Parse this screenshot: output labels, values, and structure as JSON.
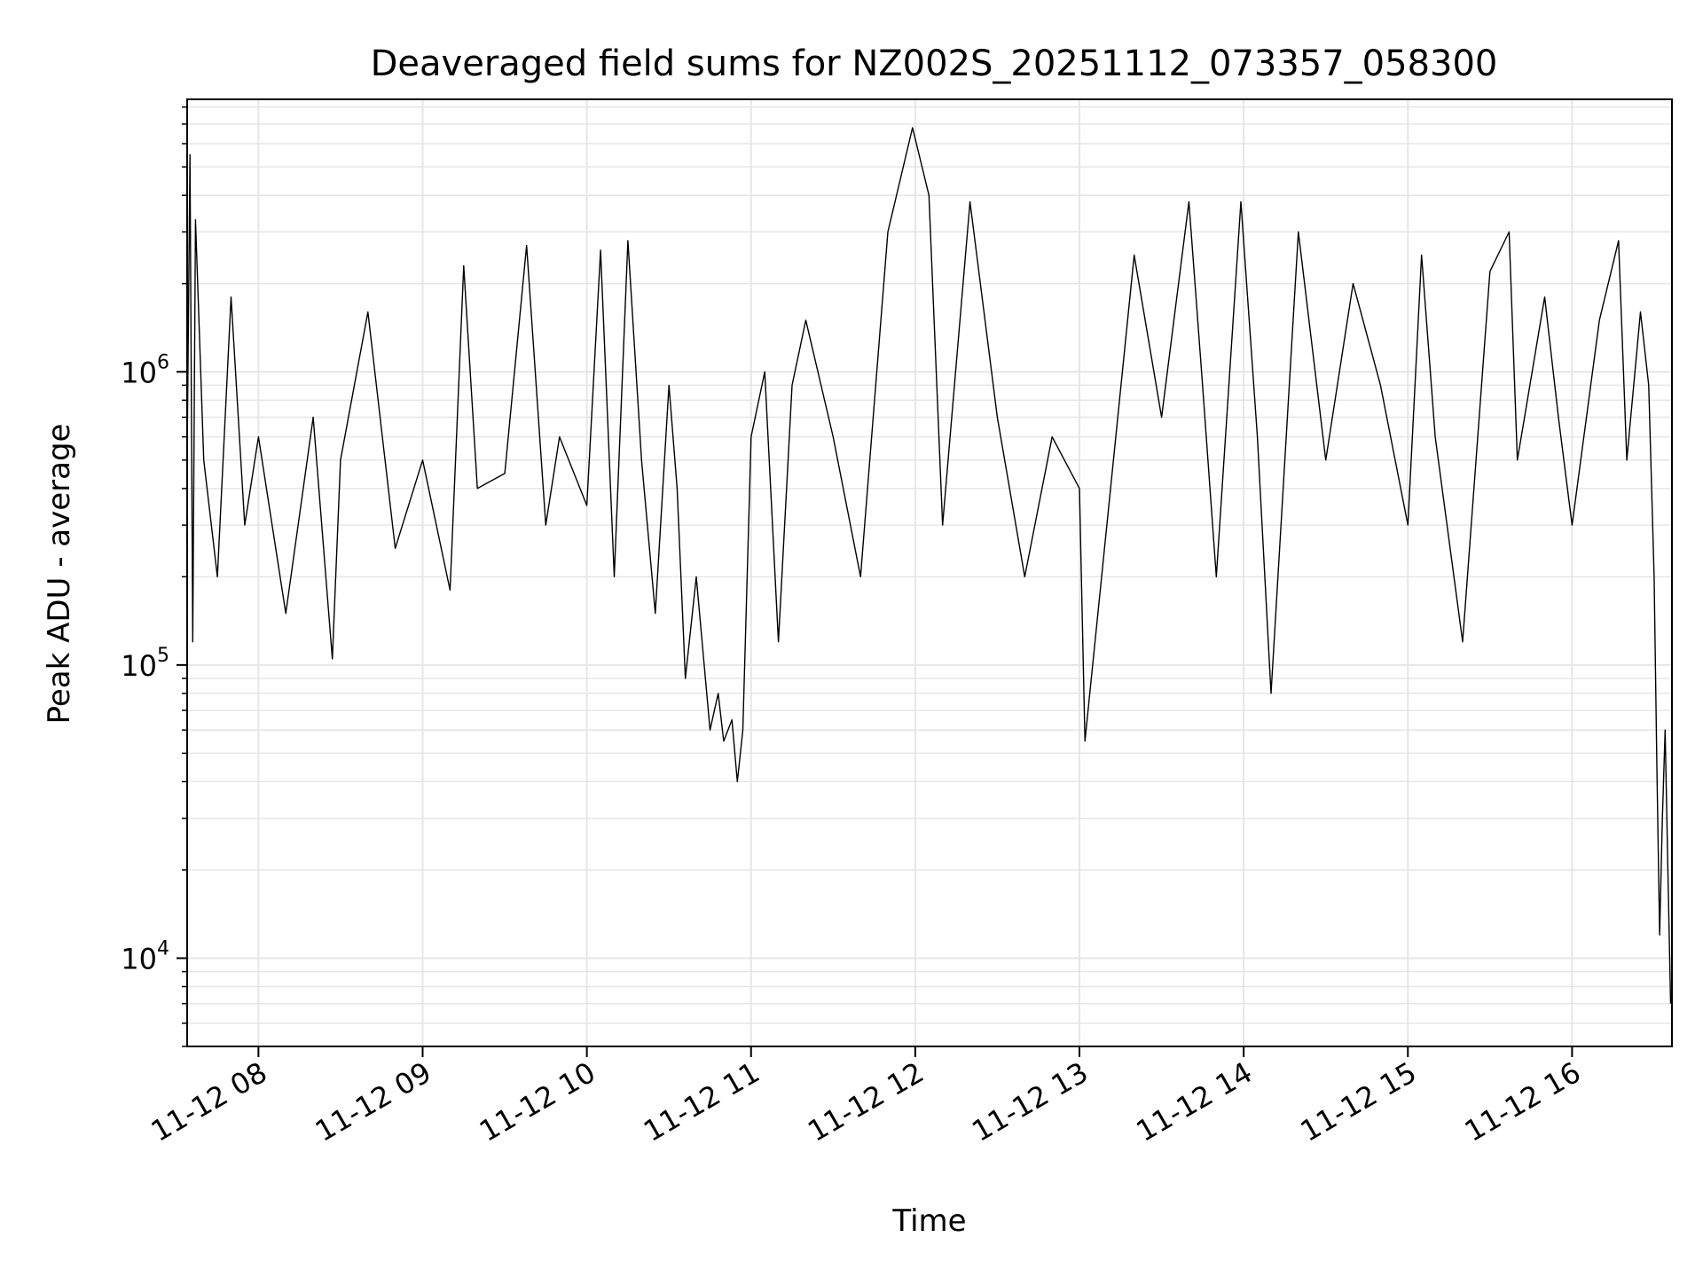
{
  "chart_data": {
    "type": "line",
    "title": "Deaveraged field sums for NZ002S_20251112_073357_058300",
    "xlabel": "Time",
    "ylabel": "Peak ADU - average",
    "yscale": "log",
    "ylim": [
      5000,
      8500000
    ],
    "xlim": [
      "2025-11-12 07:33:57",
      "2025-11-12 16:36:30"
    ],
    "grid": true,
    "legend": "none",
    "line_color": "#000000",
    "grid_color": "#e6e6e6",
    "x_ticks": [
      {
        "value": "2025-11-12 08:00",
        "label": "11-12 08"
      },
      {
        "value": "2025-11-12 09:00",
        "label": "11-12 09"
      },
      {
        "value": "2025-11-12 10:00",
        "label": "11-12 10"
      },
      {
        "value": "2025-11-12 11:00",
        "label": "11-12 11"
      },
      {
        "value": "2025-11-12 12:00",
        "label": "11-12 12"
      },
      {
        "value": "2025-11-12 13:00",
        "label": "11-12 13"
      },
      {
        "value": "2025-11-12 14:00",
        "label": "11-12 14"
      },
      {
        "value": "2025-11-12 15:00",
        "label": "11-12 15"
      },
      {
        "value": "2025-11-12 16:00",
        "label": "11-12 16"
      }
    ],
    "y_ticks": [
      {
        "value": 10000,
        "base": "10",
        "exp": "4"
      },
      {
        "value": 100000,
        "base": "10",
        "exp": "5"
      },
      {
        "value": 1000000,
        "base": "10",
        "exp": "6"
      }
    ],
    "series": [
      {
        "x": [
          "2025-11-12 07:34",
          "2025-11-12 07:35",
          "2025-11-12 07:36",
          "2025-11-12 07:37",
          "2025-11-12 07:40",
          "2025-11-12 07:45",
          "2025-11-12 07:50",
          "2025-11-12 07:55",
          "2025-11-12 08:00",
          "2025-11-12 08:10",
          "2025-11-12 08:20",
          "2025-11-12 08:27",
          "2025-11-12 08:30",
          "2025-11-12 08:40",
          "2025-11-12 08:50",
          "2025-11-12 09:00",
          "2025-11-12 09:10",
          "2025-11-12 09:15",
          "2025-11-12 09:20",
          "2025-11-12 09:30",
          "2025-11-12 09:38",
          "2025-11-12 09:45",
          "2025-11-12 09:50",
          "2025-11-12 10:00",
          "2025-11-12 10:05",
          "2025-11-12 10:10",
          "2025-11-12 10:15",
          "2025-11-12 10:20",
          "2025-11-12 10:25",
          "2025-11-12 10:30",
          "2025-11-12 10:33",
          "2025-11-12 10:36",
          "2025-11-12 10:40",
          "2025-11-12 10:45",
          "2025-11-12 10:48",
          "2025-11-12 10:50",
          "2025-11-12 10:53",
          "2025-11-12 10:55",
          "2025-11-12 10:57",
          "2025-11-12 11:00",
          "2025-11-12 11:05",
          "2025-11-12 11:10",
          "2025-11-12 11:15",
          "2025-11-12 11:20",
          "2025-11-12 11:30",
          "2025-11-12 11:40",
          "2025-11-12 11:50",
          "2025-11-12 11:59",
          "2025-11-12 12:05",
          "2025-11-12 12:10",
          "2025-11-12 12:20",
          "2025-11-12 12:30",
          "2025-11-12 12:40",
          "2025-11-12 12:50",
          "2025-11-12 13:00",
          "2025-11-12 13:02",
          "2025-11-12 13:10",
          "2025-11-12 13:20",
          "2025-11-12 13:30",
          "2025-11-12 13:40",
          "2025-11-12 13:45",
          "2025-11-12 13:50",
          "2025-11-12 13:59",
          "2025-11-12 14:05",
          "2025-11-12 14:10",
          "2025-11-12 14:20",
          "2025-11-12 14:30",
          "2025-11-12 14:40",
          "2025-11-12 14:50",
          "2025-11-12 15:00",
          "2025-11-12 15:05",
          "2025-11-12 15:10",
          "2025-11-12 15:20",
          "2025-11-12 15:30",
          "2025-11-12 15:37",
          "2025-11-12 15:40",
          "2025-11-12 15:50",
          "2025-11-12 15:55",
          "2025-11-12 16:00",
          "2025-11-12 16:10",
          "2025-11-12 16:17",
          "2025-11-12 16:20",
          "2025-11-12 16:25",
          "2025-11-12 16:28",
          "2025-11-12 16:30",
          "2025-11-12 16:31",
          "2025-11-12 16:32",
          "2025-11-12 16:33",
          "2025-11-12 16:34",
          "2025-11-12 16:35",
          "2025-11-12 16:36"
        ],
        "y": [
          600000,
          5500000,
          120000,
          3300000,
          500000,
          200000,
          1800000,
          300000,
          600000,
          150000,
          700000,
          105000,
          500000,
          1600000,
          250000,
          500000,
          180000,
          2300000,
          400000,
          450000,
          2700000,
          300000,
          600000,
          350000,
          2600000,
          200000,
          2800000,
          500000,
          150000,
          900000,
          400000,
          90000,
          200000,
          60000,
          80000,
          55000,
          65000,
          40000,
          60000,
          600000,
          1000000,
          120000,
          900000,
          1500000,
          600000,
          200000,
          3000000,
          6800000,
          4000000,
          300000,
          3800000,
          700000,
          200000,
          600000,
          400000,
          55000,
          300000,
          2500000,
          700000,
          3800000,
          900000,
          200000,
          3800000,
          600000,
          80000,
          3000000,
          500000,
          2000000,
          900000,
          300000,
          2500000,
          600000,
          120000,
          2200000,
          3000000,
          500000,
          1800000,
          700000,
          300000,
          1500000,
          2800000,
          500000,
          1600000,
          900000,
          200000,
          45000,
          12000,
          30000,
          60000,
          20000,
          7000
        ]
      }
    ]
  }
}
